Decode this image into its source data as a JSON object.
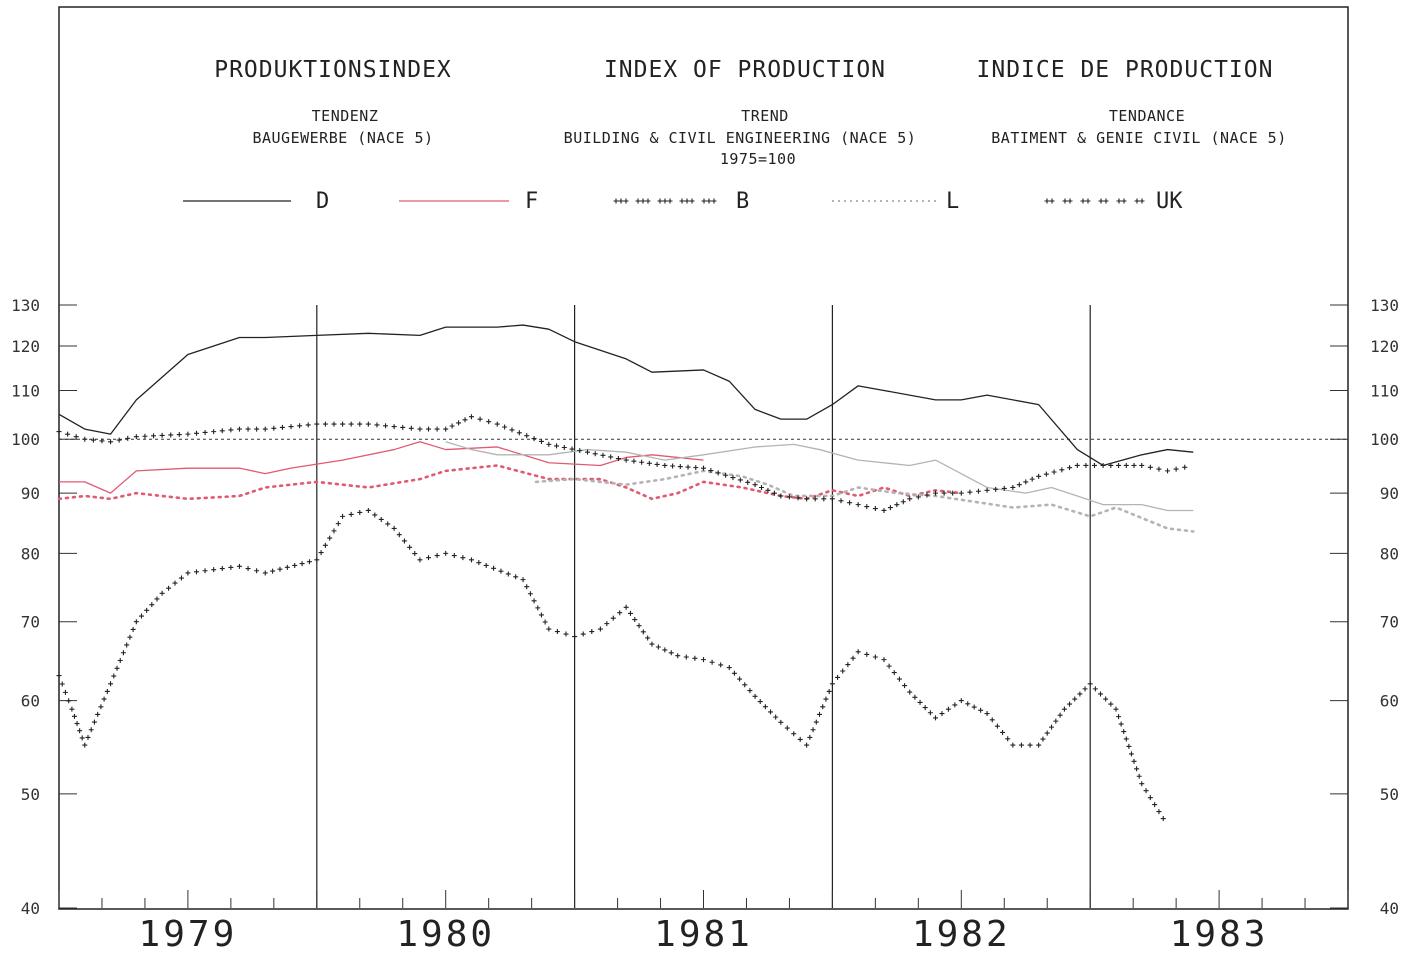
{
  "chart_data": {
    "type": "line",
    "title_de": "PRODUKTIONSINDEX",
    "title_en": "INDEX OF PRODUCTION",
    "title_fr": "INDICE DE PRODUCTION",
    "subtitle_de": [
      "TENDENZ",
      "BAUGEWERBE (NACE 5)"
    ],
    "subtitle_en": [
      "TREND",
      "BUILDING & CIVIL ENGINEERING (NACE 5)",
      "1975=100"
    ],
    "subtitle_fr": [
      "TENDANCE",
      "BATIMENT & GENIE CIVIL (NACE 5)"
    ],
    "x_labels": [
      "1979",
      "1980",
      "1981",
      "1982",
      "1983"
    ],
    "xlim": [
      1978.5,
      1983.5
    ],
    "yticks": [
      "130",
      "120",
      "110",
      "100",
      "90",
      "80",
      "70",
      "60",
      "50",
      "40"
    ],
    "ylim": [
      40,
      130
    ],
    "y_scale": "log",
    "reference_line": 100,
    "legend_placement": "top",
    "grid": false,
    "series": [
      {
        "name": "D",
        "style": "solid",
        "color": "#222222",
        "x": [
          1978.5,
          1978.6,
          1978.7,
          1978.8,
          1979.0,
          1979.2,
          1979.3,
          1979.5,
          1979.7,
          1979.9,
          1980.0,
          1980.2,
          1980.3,
          1980.4,
          1980.5,
          1980.7,
          1980.8,
          1981.0,
          1981.1,
          1981.2,
          1981.3,
          1981.4,
          1981.5,
          1981.6,
          1981.7,
          1981.9,
          1982.0,
          1982.1,
          1982.3,
          1982.45,
          1982.55,
          1982.7,
          1982.8,
          1982.9
        ],
        "y": [
          105,
          102,
          101,
          108,
          118,
          122,
          122,
          122.5,
          123,
          122.5,
          124.5,
          124.5,
          125,
          124,
          121,
          117,
          114,
          114.5,
          112,
          106,
          104,
          104,
          107,
          111,
          110,
          108,
          108,
          109,
          107,
          98,
          95,
          97,
          98,
          97.5
        ]
      },
      {
        "name": "F",
        "style": "solid",
        "color": "#e05a72",
        "x": [
          1978.5,
          1978.6,
          1978.7,
          1978.8,
          1979.0,
          1979.2,
          1979.3,
          1979.4,
          1979.6,
          1979.8,
          1979.9,
          1980.0,
          1980.2,
          1980.4,
          1980.6,
          1980.7,
          1980.8,
          1980.9,
          1981.0
        ],
        "y": [
          92,
          92,
          90,
          94,
          94.5,
          94.5,
          93.5,
          94.5,
          96,
          98,
          99.5,
          98,
          98.5,
          95.5,
          95,
          96.5,
          97,
          96.5,
          96
        ]
      },
      {
        "name": "F (dotted)",
        "style": "dotted",
        "color": "#e05a72",
        "x": [
          1978.5,
          1978.6,
          1978.7,
          1978.8,
          1979.0,
          1979.2,
          1979.3,
          1979.5,
          1979.7,
          1979.9,
          1980.0,
          1980.2,
          1980.4,
          1980.6,
          1980.7,
          1980.8,
          1980.9,
          1981.0,
          1981.15,
          1981.3,
          1981.4,
          1981.5,
          1981.6,
          1981.7,
          1981.8,
          1981.9,
          1982.0
        ],
        "y": [
          89,
          89.5,
          89,
          90,
          89,
          89.5,
          91,
          92,
          91,
          92.5,
          94,
          95,
          92.5,
          92.5,
          91,
          89,
          90,
          92,
          91,
          89.5,
          89,
          90.5,
          89.5,
          91,
          89.5,
          90.5,
          90
        ]
      },
      {
        "name": "L",
        "style": "solid",
        "color": "#b4b4b4",
        "x": [
          1980.0,
          1980.1,
          1980.2,
          1980.4,
          1980.55,
          1980.7,
          1980.85,
          1981.0,
          1981.2,
          1981.35,
          1981.45,
          1981.6,
          1981.8,
          1981.9,
          1982.1,
          1982.25,
          1982.35,
          1982.45,
          1982.55,
          1982.7,
          1982.8,
          1982.9
        ],
        "y": [
          99.5,
          98,
          97,
          97,
          98,
          97.5,
          96,
          97,
          98.5,
          99,
          98,
          96,
          95,
          96,
          91,
          90,
          91,
          89.5,
          88,
          88,
          87,
          87
        ]
      },
      {
        "name": "L (dotted)",
        "style": "dotted",
        "color": "#b4b4b4",
        "x": [
          1980.35,
          1980.5,
          1980.7,
          1980.85,
          1981.0,
          1981.15,
          1981.25,
          1981.35,
          1981.5,
          1981.6,
          1981.75,
          1981.9,
          1982.05,
          1982.2,
          1982.35,
          1982.5,
          1982.6,
          1982.8,
          1982.9
        ],
        "y": [
          92,
          92.5,
          91.5,
          92.5,
          94,
          93,
          91.5,
          89.5,
          89.5,
          91,
          90,
          89.5,
          88.5,
          87.5,
          88,
          86,
          87.5,
          84,
          83.5
        ]
      },
      {
        "name": "B",
        "style": "plus",
        "color": "#222222",
        "x": [
          1978.5,
          1978.55,
          1978.6,
          1978.7,
          1978.8,
          1978.9,
          1979.0,
          1979.2,
          1979.3,
          1979.5,
          1979.6,
          1979.7,
          1979.8,
          1979.9,
          1980.0,
          1980.1,
          1980.3,
          1980.4,
          1980.5,
          1980.6,
          1980.7,
          1980.8,
          1980.9,
          1981.0,
          1981.1,
          1981.2,
          1981.3,
          1981.4,
          1981.5,
          1981.6,
          1981.7,
          1981.8,
          1981.9,
          1982.0,
          1982.1,
          1982.2,
          1982.3,
          1982.4,
          1982.5,
          1982.6,
          1982.7,
          1982.8
        ],
        "y": [
          63,
          59,
          55,
          62,
          70,
          74,
          77,
          78,
          77,
          79,
          86,
          87,
          84,
          79,
          80,
          79,
          76,
          69,
          68,
          69,
          72,
          67,
          65.5,
          65,
          64,
          60.5,
          57.5,
          55,
          62,
          66,
          65,
          61,
          58,
          60,
          58.5,
          55,
          55,
          59,
          62,
          59,
          51,
          47
        ]
      },
      {
        "name": "UK",
        "style": "plus",
        "color": "#222222",
        "x": [
          1978.5,
          1978.6,
          1978.7,
          1978.8,
          1979.0,
          1979.2,
          1979.3,
          1979.5,
          1979.7,
          1979.9,
          1980.0,
          1980.1,
          1980.2,
          1980.4,
          1980.55,
          1980.7,
          1980.85,
          1981.0,
          1981.2,
          1981.3,
          1981.4,
          1981.5,
          1981.6,
          1981.7,
          1981.8,
          1981.9,
          1982.0,
          1982.1,
          1982.2,
          1982.3,
          1982.45,
          1982.55,
          1982.7,
          1982.8,
          1982.9
        ],
        "y": [
          101.5,
          100,
          99.5,
          100.5,
          101,
          102,
          102,
          103,
          103,
          102,
          102,
          104.5,
          103,
          99,
          97.5,
          96,
          95,
          94.5,
          91.5,
          89.5,
          89,
          89,
          88,
          87,
          89,
          90,
          90,
          90.5,
          91,
          93,
          95,
          95,
          95,
          94,
          95
        ]
      }
    ]
  },
  "legend": [
    {
      "label": "D",
      "style": "solid",
      "color": "#222222"
    },
    {
      "label": "F",
      "style": "solid",
      "color": "#e05a72"
    },
    {
      "label": "B",
      "style": "plus",
      "color": "#222222"
    },
    {
      "label": "L",
      "style": "dotted",
      "color": "#b4b4b4"
    },
    {
      "label": "UK",
      "style": "plus",
      "color": "#222222"
    }
  ]
}
